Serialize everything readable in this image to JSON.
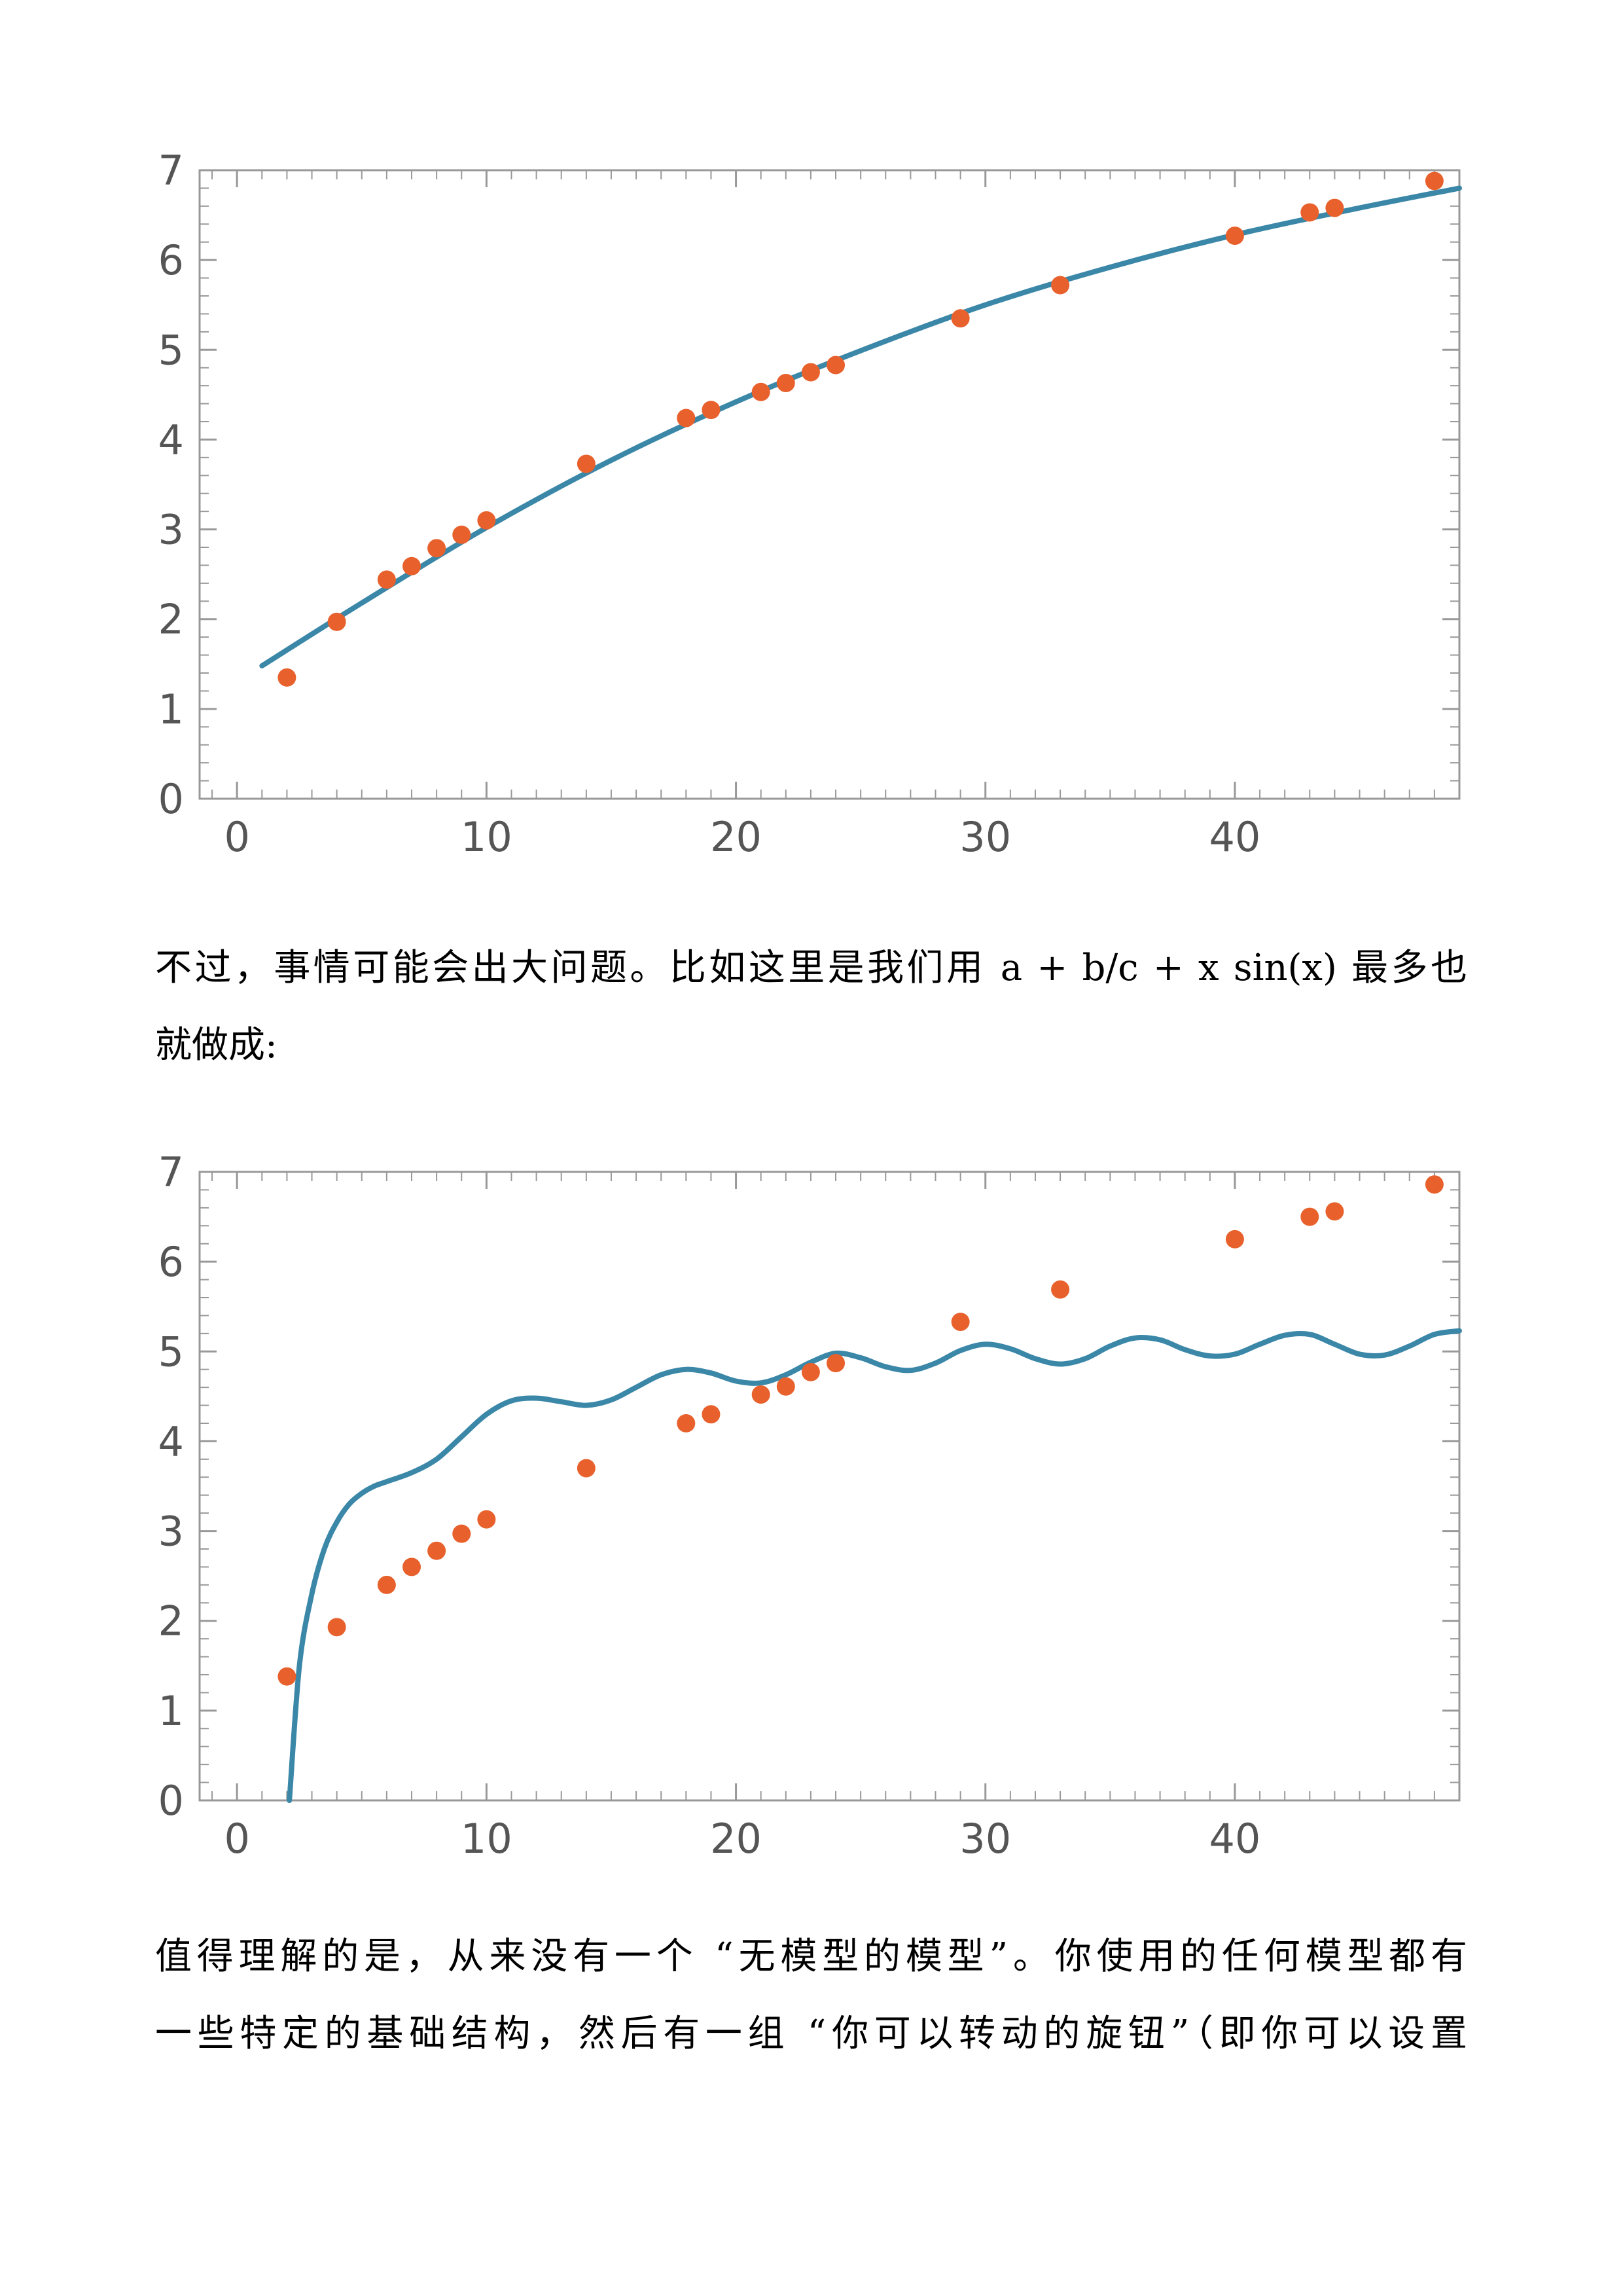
{
  "paragraphs": {
    "p1": {
      "lines": [
        "不过，事情可能会出大问题。比如这里是我们用 a + b/c + x sin(x) 最多也",
        "就做成:"
      ]
    },
    "p2": {
      "lines": [
        "值得理解的是，从来没有一个 “无模型的模型”。你使用的任何模型都有",
        "一些特定的基础结构，然后有一组 “你可以转动的旋钮”（即你可以设置"
      ]
    }
  },
  "colors": {
    "curve": "#3b87a8",
    "points": "#e8612c",
    "axis": "#999999",
    "tick_label": "#555555"
  },
  "chart_data": [
    {
      "type": "scatter",
      "title": "",
      "xlabel": "",
      "ylabel": "",
      "xlim": [
        -1.5,
        49
      ],
      "ylim": [
        0,
        7
      ],
      "x_ticks": [
        "0",
        "10",
        "20",
        "30",
        "40"
      ],
      "y_ticks": [
        "0",
        "1",
        "2",
        "3",
        "4",
        "5",
        "6",
        "7"
      ],
      "grid": false,
      "legend": "none",
      "points": [
        [
          2,
          1.35
        ],
        [
          4,
          1.97
        ],
        [
          6,
          2.44
        ],
        [
          7,
          2.59
        ],
        [
          8,
          2.79
        ],
        [
          9,
          2.94
        ],
        [
          10,
          3.1
        ],
        [
          14,
          3.73
        ],
        [
          18,
          4.24
        ],
        [
          19,
          4.33
        ],
        [
          21,
          4.53
        ],
        [
          22,
          4.63
        ],
        [
          23,
          4.75
        ],
        [
          24,
          4.83
        ],
        [
          29,
          5.35
        ],
        [
          33,
          5.72
        ],
        [
          40,
          6.27
        ],
        [
          43,
          6.53
        ],
        [
          44,
          6.58
        ],
        [
          48,
          6.88
        ]
      ],
      "fit_curve": [
        [
          1,
          1.48
        ],
        [
          5,
          2.18
        ],
        [
          10,
          3.02
        ],
        [
          15,
          3.77
        ],
        [
          20,
          4.42
        ],
        [
          25,
          4.99
        ],
        [
          30,
          5.5
        ],
        [
          35,
          5.92
        ],
        [
          40,
          6.28
        ],
        [
          45,
          6.58
        ],
        [
          49,
          6.8
        ]
      ]
    },
    {
      "type": "scatter",
      "title": "",
      "xlabel": "",
      "ylabel": "",
      "xlim": [
        -1.5,
        49
      ],
      "ylim": [
        0,
        7
      ],
      "x_ticks": [
        "0",
        "10",
        "20",
        "30",
        "40"
      ],
      "y_ticks": [
        "0",
        "1",
        "2",
        "3",
        "4",
        "5",
        "6",
        "7"
      ],
      "grid": false,
      "legend": "none",
      "points": [
        [
          2,
          1.38
        ],
        [
          4,
          1.93
        ],
        [
          6,
          2.4
        ],
        [
          7,
          2.6
        ],
        [
          8,
          2.78
        ],
        [
          9,
          2.97
        ],
        [
          10,
          3.13
        ],
        [
          14,
          3.7
        ],
        [
          18,
          4.2
        ],
        [
          19,
          4.3
        ],
        [
          21,
          4.52
        ],
        [
          22,
          4.61
        ],
        [
          23,
          4.77
        ],
        [
          24,
          4.87
        ],
        [
          29,
          5.33
        ],
        [
          33,
          5.69
        ],
        [
          40,
          6.25
        ],
        [
          43,
          6.5
        ],
        [
          44,
          6.56
        ],
        [
          48,
          6.86
        ]
      ],
      "fit_curve": [
        [
          2.1,
          0.0
        ],
        [
          2.5,
          1.5
        ],
        [
          3,
          2.3
        ],
        [
          3.5,
          2.8
        ],
        [
          4,
          3.1
        ],
        [
          4.5,
          3.3
        ],
        [
          5,
          3.42
        ],
        [
          5.5,
          3.5
        ],
        [
          6,
          3.55
        ],
        [
          7,
          3.65
        ],
        [
          8,
          3.8
        ],
        [
          9,
          4.05
        ],
        [
          10,
          4.3
        ],
        [
          11,
          4.45
        ],
        [
          12,
          4.48
        ],
        [
          13,
          4.44
        ],
        [
          14,
          4.4
        ],
        [
          15,
          4.46
        ],
        [
          16,
          4.6
        ],
        [
          17,
          4.74
        ],
        [
          18,
          4.8
        ],
        [
          19,
          4.76
        ],
        [
          20,
          4.67
        ],
        [
          21,
          4.65
        ],
        [
          22,
          4.74
        ],
        [
          23,
          4.88
        ],
        [
          24,
          4.98
        ],
        [
          25,
          4.93
        ],
        [
          26,
          4.83
        ],
        [
          27,
          4.79
        ],
        [
          28,
          4.87
        ],
        [
          29,
          5.01
        ],
        [
          30,
          5.08
        ],
        [
          31,
          5.03
        ],
        [
          32,
          4.92
        ],
        [
          33,
          4.86
        ],
        [
          34,
          4.92
        ],
        [
          35,
          5.06
        ],
        [
          36,
          5.15
        ],
        [
          37,
          5.13
        ],
        [
          38,
          5.02
        ],
        [
          39,
          4.95
        ],
        [
          40,
          4.97
        ],
        [
          41,
          5.08
        ],
        [
          42,
          5.18
        ],
        [
          43,
          5.19
        ],
        [
          44,
          5.08
        ],
        [
          45,
          4.97
        ],
        [
          46,
          4.96
        ],
        [
          47,
          5.06
        ],
        [
          48,
          5.19
        ],
        [
          49,
          5.23
        ]
      ]
    }
  ]
}
